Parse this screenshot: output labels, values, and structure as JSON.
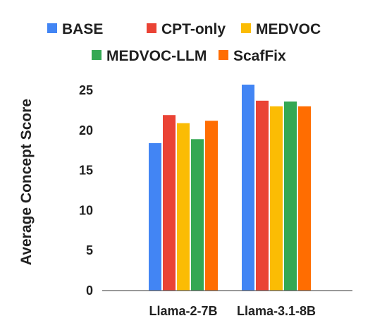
{
  "chart_data": {
    "type": "bar",
    "title": "",
    "xlabel": "",
    "ylabel": "Average Concept Score",
    "ylim": [
      0,
      27
    ],
    "yticks": [
      0,
      5,
      10,
      15,
      20,
      25
    ],
    "grid": false,
    "legend_position": "top",
    "categories": [
      "Llama-2-7B",
      "Llama-3.1-8B"
    ],
    "series": [
      {
        "name": "BASE",
        "color": "#4285F4",
        "values": [
          18.4,
          25.7
        ]
      },
      {
        "name": "CPT-only",
        "color": "#EA4335",
        "values": [
          21.9,
          23.7
        ]
      },
      {
        "name": "MEDVOC",
        "color": "#FBBC04",
        "values": [
          20.9,
          23.0
        ]
      },
      {
        "name": "MEDVOC-LLM",
        "color": "#34A853",
        "values": [
          18.9,
          23.6
        ]
      },
      {
        "name": "ScafFix",
        "color": "#FF6D01",
        "values": [
          21.2,
          23.0
        ]
      }
    ]
  }
}
